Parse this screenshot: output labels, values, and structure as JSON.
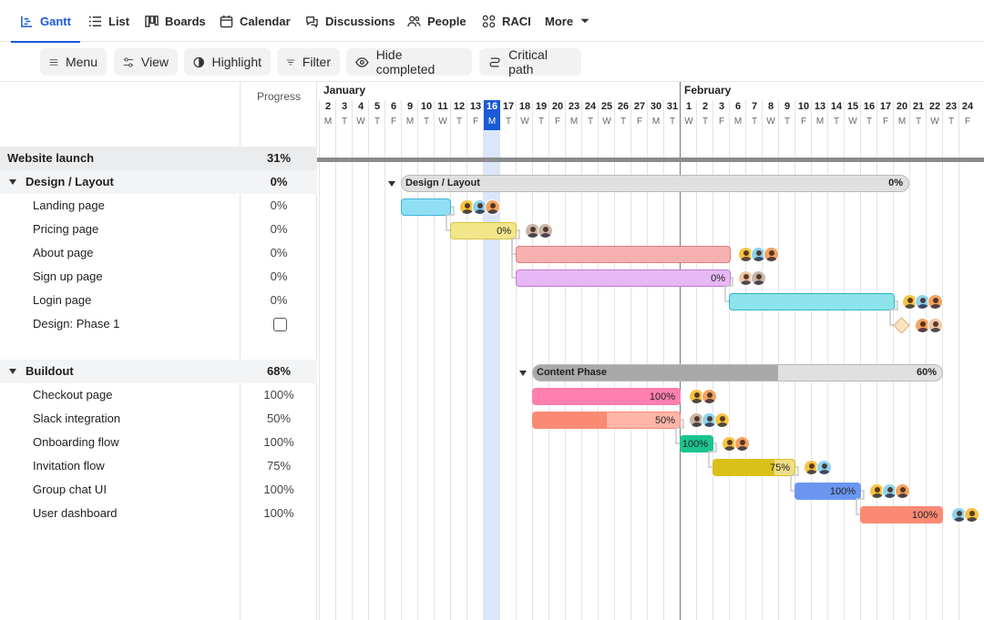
{
  "nav": {
    "tabs": [
      {
        "label": "Gantt",
        "icon": "gantt-icon"
      },
      {
        "label": "List",
        "icon": "list-icon"
      },
      {
        "label": "Boards",
        "icon": "boards-icon"
      },
      {
        "label": "Calendar",
        "icon": "calendar-icon"
      },
      {
        "label": "Discussions",
        "icon": "discussions-icon"
      },
      {
        "label": "People",
        "icon": "people-icon"
      },
      {
        "label": "RACI",
        "icon": "raci-icon"
      },
      {
        "label": "More",
        "icon": "chevron-down-icon"
      }
    ],
    "active_color": "#1a5ad7"
  },
  "toolbar": {
    "menu": "Menu",
    "view": "View",
    "highlight": "Highlight",
    "filter": "Filter",
    "hide_completed": "Hide completed",
    "critical_path": "Critical path"
  },
  "panel": {
    "progress_header": "Progress",
    "project": {
      "name": "Website launch",
      "progress": "31%"
    },
    "groups": [
      {
        "name": "Design / Layout",
        "progress": "0%",
        "tasks": [
          {
            "name": "Landing page",
            "progress": "0%"
          },
          {
            "name": "Pricing page",
            "progress": "0%"
          },
          {
            "name": "About page",
            "progress": "0%"
          },
          {
            "name": "Sign up page",
            "progress": "0%"
          },
          {
            "name": "Login page",
            "progress": "0%"
          },
          {
            "name": "Design: Phase 1",
            "progress": "milestone-checkbox"
          }
        ]
      },
      {
        "name": "Buildout",
        "progress": "68%",
        "tasks": [
          {
            "name": "Checkout page",
            "progress": "100%"
          },
          {
            "name": "Slack integration",
            "progress": "50%"
          },
          {
            "name": "Onboarding flow",
            "progress": "100%"
          },
          {
            "name": "Invitation flow",
            "progress": "75%"
          },
          {
            "name": "Group chat UI",
            "progress": "100%"
          },
          {
            "name": "User dashboard",
            "progress": "100%"
          }
        ]
      }
    ]
  },
  "timeline": {
    "months": [
      "January",
      "February"
    ],
    "days": [
      "2",
      "3",
      "4",
      "5",
      "6",
      "9",
      "10",
      "11",
      "12",
      "13",
      "16",
      "17",
      "18",
      "19",
      "20",
      "23",
      "24",
      "25",
      "26",
      "27",
      "30",
      "31",
      "1",
      "2",
      "3",
      "6",
      "7",
      "8",
      "9",
      "10",
      "13",
      "14",
      "15",
      "16",
      "17",
      "20",
      "21",
      "22",
      "23",
      "24"
    ],
    "weekdays": [
      "M",
      "T",
      "W",
      "T",
      "F",
      "M",
      "T",
      "W",
      "T",
      "F",
      "M",
      "T",
      "W",
      "T",
      "F",
      "M",
      "T",
      "W",
      "T",
      "F",
      "M",
      "T",
      "W",
      "T",
      "F",
      "M",
      "T",
      "W",
      "T",
      "F",
      "M",
      "T",
      "W",
      "T",
      "F",
      "M",
      "T",
      "W",
      "T",
      "F"
    ],
    "today_index": 10,
    "today_color": "#1a5ad7",
    "group_bars": [
      {
        "name": "Design / Layout",
        "label": "0%",
        "progress": 0
      },
      {
        "name": "Content Phase",
        "label": "60%",
        "progress": 0.6
      }
    ],
    "task_bars": [
      {
        "label": "",
        "progress": 0,
        "color": "#8fe0f5",
        "fill": "#8fe0f5",
        "border": "#3fb5d6"
      },
      {
        "label": "0%",
        "progress": 0,
        "color": "#f2e68a",
        "fill": "#f2e68a",
        "border": "#d6c440"
      },
      {
        "label": "",
        "progress": 0,
        "color": "#f7b1b1",
        "fill": "#f7b1b1",
        "border": "#e07c7c"
      },
      {
        "label": "0%",
        "progress": 0,
        "color": "#e6b8f5",
        "fill": "#e6b8f5",
        "border": "#c07ad8"
      },
      {
        "label": "",
        "progress": 0,
        "color": "#8de3ea",
        "fill": "#8de3ea",
        "border": "#2eb7c2"
      },
      {
        "label": "100%",
        "progress": 1,
        "color": "#ff7fae",
        "fill": "#ff7fae",
        "border": "#ff7fae"
      },
      {
        "label": "50%",
        "progress": 0.5,
        "color": "#ffb5a8",
        "fill": "#fb8a74",
        "border": "#fb8a74"
      },
      {
        "label": "100%",
        "progress": 1,
        "color": "#1cc48f",
        "fill": "#1cc48f",
        "border": "#1cc48f"
      },
      {
        "label": "75%",
        "progress": 0.75,
        "color": "#eedd86",
        "fill": "#d9c11a",
        "border": "#d9c11a"
      },
      {
        "label": "100%",
        "progress": 1,
        "color": "#6b96f0",
        "fill": "#6b96f0",
        "border": "#6b96f0"
      },
      {
        "label": "100%",
        "progress": 1,
        "color": "#fb8a74",
        "fill": "#fb8a74",
        "border": "#fb8a74"
      }
    ],
    "avatar_colors": [
      "#f6c343",
      "#8fd3ef",
      "#f4a261",
      "#c9b6a6",
      "#b9d7c8",
      "#f2c7a8"
    ]
  }
}
